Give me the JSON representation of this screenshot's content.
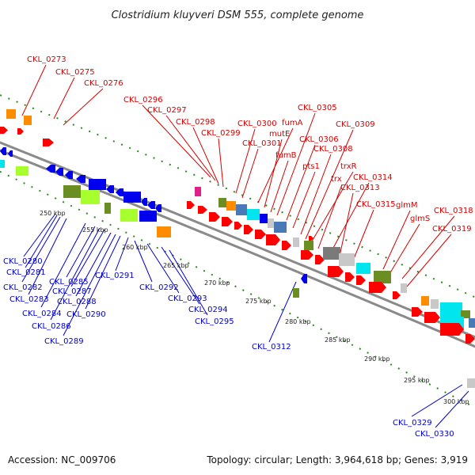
{
  "title": "Clostridium kluyveri DSM 555, complete genome",
  "footer": {
    "accession": "Accession: NC_009706",
    "topology": "Topology: circular; Length: 3,964,618 bp; Genes: 3,919"
  },
  "colors": {
    "forward_label": "#d40000",
    "reverse_label": "#0000cc",
    "backbone": "#808080",
    "tick_dots": "#2a8a1a",
    "gene_red": "#ff0000",
    "gene_blue": "#0000ee",
    "gene_cyan": "#00e5ee",
    "gene_orange": "#ff8c00",
    "gene_olive": "#6b8e23",
    "gene_lightgreen": "#a8ff2e",
    "gene_gray": "#7a7a7a",
    "gene_lightgray": "#c8c8c8",
    "gene_magenta": "#e0208a",
    "gene_steelblue": "#4a7ab5"
  },
  "kbp_ticks": [
    "250 kbp",
    "255 kbp",
    "260 kbp",
    "265 kbp",
    "270 kbp",
    "275 kbp",
    "280 kbp",
    "285 kbp",
    "290 kbp",
    "295 kbp",
    "300 kbp"
  ],
  "forward_labels": [
    "CKL_0273",
    "CKL_0275",
    "CKL_0276",
    "CKL_0296",
    "CKL_0297",
    "CKL_0298",
    "CKL_0299",
    "CKL_0300",
    "CKL_0301",
    "fumA",
    "mutE",
    "fumB",
    "CKL_0305",
    "CKL_0306",
    "pts1",
    "CKL_0308",
    "CKL_0309",
    "trxR",
    "trx",
    "CKL_0314",
    "CKL_0313",
    "CKL_0315",
    "glmM",
    "glmS",
    "CKL_0318",
    "CKL_0319"
  ],
  "reverse_labels": [
    "CKL_0280",
    "CKL_0281",
    "CKL_0282",
    "CKL_0283",
    "CKL_0284",
    "CKL_0285",
    "CKL_0286",
    "CKL_0287",
    "CKL_0288",
    "CKL_0289",
    "CKL_0290",
    "CKL_0291",
    "CKL_0292",
    "CKL_0293",
    "CKL_0294",
    "CKL_0295",
    "CKL_0312",
    "CKL_0329",
    "CKL_0330"
  ]
}
